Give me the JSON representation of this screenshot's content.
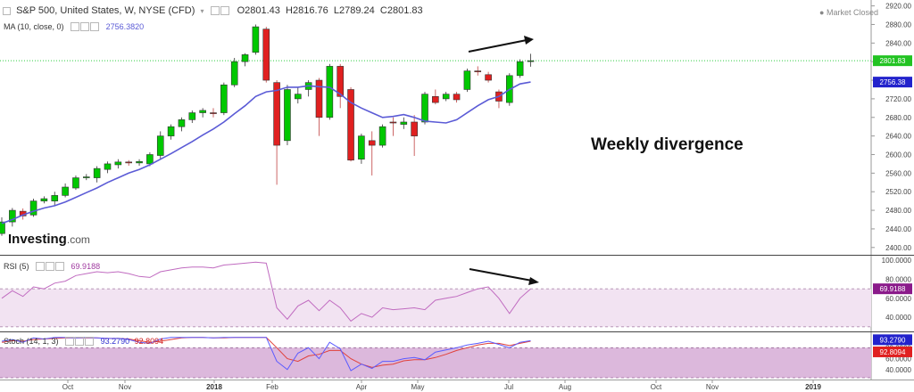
{
  "header": {
    "symbol_title": "S&P 500, United States, W, NYSE (CFD)",
    "open": "O2801.43",
    "high": "H2816.76",
    "low": "L2789.24",
    "close": "C2801.83",
    "ma_label": "MA (10, close, 0)",
    "ma_value": "2756.3820",
    "market_status": "Market Closed",
    "rsi_label": "RSI (5)",
    "rsi_value": "69.9188",
    "stoch_label": "Stoch (14, 1, 3)",
    "stoch_k_value": "93.2790",
    "stoch_d_value": "92.8094",
    "annotation": "Weekly divergence",
    "brand": "Investing",
    "brand_suffix": ".com"
  },
  "price_badges": {
    "close": "2801.83",
    "ma": "2756.38",
    "rsi": "69.9188",
    "stoch_k": "93.2790",
    "stoch_d": "92.8094"
  },
  "colors": {
    "up": "#00c800",
    "down": "#e02020",
    "ma": "#5b5bd6",
    "rsi": "#c06bc0",
    "stoch_k": "#5b5bff",
    "stoch_d": "#e0403a",
    "band_rsi": "#f2e3f2",
    "band_stoch": "#dcb8dc",
    "close_line": "#2ecc40"
  },
  "chart_data": {
    "type": "candlestick",
    "x_axis_ticks": [
      "Oct",
      "Nov",
      "2018",
      "Feb",
      "Apr",
      "May",
      "Jul",
      "Aug",
      "Oct",
      "Nov",
      "2019"
    ],
    "price_axis": {
      "ylim": [
        2390,
        2925
      ],
      "ticks": [
        2400,
        2440,
        2480,
        2520,
        2560,
        2600,
        2640,
        2680,
        2720,
        2760,
        2800,
        2840,
        2880,
        2920
      ]
    },
    "rsi_axis": {
      "ylim": [
        27,
        103
      ],
      "ticks": [
        "100.0000",
        "80.0000",
        "60.0000",
        "40.0000"
      ],
      "band": [
        30,
        70
      ]
    },
    "stoch_axis": {
      "ylim": [
        25,
        105
      ],
      "ticks": [
        "80.0000",
        "60.0000",
        "40.0000"
      ],
      "band": [
        20,
        80
      ]
    },
    "candles": [
      {
        "o": 2430,
        "c": 2455,
        "h": 2465,
        "l": 2425
      },
      {
        "o": 2455,
        "c": 2480,
        "h": 2485,
        "l": 2445
      },
      {
        "o": 2478,
        "c": 2468,
        "h": 2484,
        "l": 2460
      },
      {
        "o": 2470,
        "c": 2500,
        "h": 2505,
        "l": 2466
      },
      {
        "o": 2500,
        "c": 2505,
        "h": 2510,
        "l": 2495
      },
      {
        "o": 2500,
        "c": 2512,
        "h": 2520,
        "l": 2490
      },
      {
        "o": 2512,
        "c": 2530,
        "h": 2538,
        "l": 2508
      },
      {
        "o": 2528,
        "c": 2550,
        "h": 2555,
        "l": 2524
      },
      {
        "o": 2550,
        "c": 2552,
        "h": 2558,
        "l": 2545
      },
      {
        "o": 2550,
        "c": 2570,
        "h": 2575,
        "l": 2540
      },
      {
        "o": 2568,
        "c": 2580,
        "h": 2585,
        "l": 2560
      },
      {
        "o": 2578,
        "c": 2584,
        "h": 2590,
        "l": 2570
      },
      {
        "o": 2584,
        "c": 2582,
        "h": 2588,
        "l": 2576
      },
      {
        "o": 2582,
        "c": 2585,
        "h": 2590,
        "l": 2576
      },
      {
        "o": 2580,
        "c": 2600,
        "h": 2605,
        "l": 2575
      },
      {
        "o": 2598,
        "c": 2640,
        "h": 2650,
        "l": 2590
      },
      {
        "o": 2640,
        "c": 2660,
        "h": 2665,
        "l": 2632
      },
      {
        "o": 2660,
        "c": 2675,
        "h": 2680,
        "l": 2650
      },
      {
        "o": 2675,
        "c": 2690,
        "h": 2695,
        "l": 2668
      },
      {
        "o": 2690,
        "c": 2695,
        "h": 2700,
        "l": 2680
      },
      {
        "o": 2690,
        "c": 2688,
        "h": 2700,
        "l": 2680
      },
      {
        "o": 2690,
        "c": 2750,
        "h": 2755,
        "l": 2685
      },
      {
        "o": 2750,
        "c": 2800,
        "h": 2808,
        "l": 2745
      },
      {
        "o": 2800,
        "c": 2815,
        "h": 2818,
        "l": 2790
      },
      {
        "o": 2820,
        "c": 2875,
        "h": 2880,
        "l": 2815
      },
      {
        "o": 2870,
        "c": 2760,
        "h": 2875,
        "l": 2755
      },
      {
        "o": 2755,
        "c": 2620,
        "h": 2760,
        "l": 2535
      },
      {
        "o": 2630,
        "c": 2740,
        "h": 2750,
        "l": 2620
      },
      {
        "o": 2720,
        "c": 2730,
        "h": 2745,
        "l": 2710
      },
      {
        "o": 2740,
        "c": 2755,
        "h": 2760,
        "l": 2725
      },
      {
        "o": 2760,
        "c": 2680,
        "h": 2765,
        "l": 2640
      },
      {
        "o": 2680,
        "c": 2790,
        "h": 2795,
        "l": 2675
      },
      {
        "o": 2790,
        "c": 2725,
        "h": 2795,
        "l": 2700
      },
      {
        "o": 2740,
        "c": 2588,
        "h": 2745,
        "l": 2585
      },
      {
        "o": 2590,
        "c": 2640,
        "h": 2645,
        "l": 2580
      },
      {
        "o": 2630,
        "c": 2620,
        "h": 2650,
        "l": 2555
      },
      {
        "o": 2620,
        "c": 2660,
        "h": 2665,
        "l": 2615
      },
      {
        "o": 2670,
        "c": 2668,
        "h": 2680,
        "l": 2640
      },
      {
        "o": 2665,
        "c": 2670,
        "h": 2680,
        "l": 2655
      },
      {
        "o": 2670,
        "c": 2640,
        "h": 2685,
        "l": 2597
      },
      {
        "o": 2670,
        "c": 2730,
        "h": 2735,
        "l": 2665
      },
      {
        "o": 2725,
        "c": 2712,
        "h": 2740,
        "l": 2708
      },
      {
        "o": 2720,
        "c": 2730,
        "h": 2735,
        "l": 2715
      },
      {
        "o": 2730,
        "c": 2718,
        "h": 2735,
        "l": 2712
      },
      {
        "o": 2740,
        "c": 2780,
        "h": 2785,
        "l": 2735
      },
      {
        "o": 2780,
        "c": 2778,
        "h": 2790,
        "l": 2770
      },
      {
        "o": 2772,
        "c": 2760,
        "h": 2778,
        "l": 2755
      },
      {
        "o": 2735,
        "c": 2715,
        "h": 2740,
        "l": 2700
      },
      {
        "o": 2712,
        "c": 2770,
        "h": 2775,
        "l": 2705
      },
      {
        "o": 2770,
        "c": 2800,
        "h": 2805,
        "l": 2765
      },
      {
        "o": 2801,
        "c": 2802,
        "h": 2817,
        "l": 2789
      }
    ],
    "ma": [
      2452,
      2460,
      2470,
      2478,
      2485,
      2490,
      2498,
      2508,
      2518,
      2528,
      2540,
      2550,
      2560,
      2568,
      2578,
      2590,
      2602,
      2615,
      2628,
      2642,
      2655,
      2670,
      2688,
      2705,
      2725,
      2735,
      2738,
      2745,
      2745,
      2748,
      2746,
      2745,
      2730,
      2712,
      2700,
      2690,
      2680,
      2682,
      2686,
      2680,
      2672,
      2670,
      2668,
      2675,
      2690,
      2705,
      2718,
      2725,
      2740,
      2752,
      2756
    ],
    "rsi": [
      60,
      68,
      62,
      72,
      70,
      76,
      78,
      84,
      86,
      88,
      87,
      88,
      86,
      83,
      82,
      88,
      90,
      92,
      93,
      93,
      92,
      95,
      96,
      97,
      98,
      97,
      50,
      38,
      52,
      58,
      47,
      58,
      50,
      36,
      44,
      40,
      50,
      48,
      49,
      50,
      48,
      58,
      60,
      62,
      66,
      70,
      72,
      60,
      44,
      60,
      70
    ],
    "stoch_k": [
      92,
      95,
      90,
      98,
      96,
      99,
      99,
      98,
      99,
      98,
      97,
      97,
      95,
      90,
      88,
      96,
      99,
      99,
      99,
      99,
      98,
      99,
      99,
      99,
      99,
      99,
      55,
      40,
      70,
      80,
      60,
      90,
      78,
      38,
      50,
      42,
      55,
      55,
      60,
      62,
      58,
      72,
      76,
      80,
      85,
      88,
      92,
      86,
      80,
      90,
      93
    ],
    "stoch_d": [
      90,
      93,
      92,
      95,
      96,
      97,
      98,
      98,
      98,
      98,
      97,
      97,
      96,
      93,
      90,
      92,
      95,
      98,
      99,
      99,
      98,
      98,
      99,
      99,
      99,
      99,
      80,
      60,
      55,
      65,
      68,
      75,
      75,
      60,
      50,
      44,
      48,
      50,
      56,
      58,
      58,
      62,
      68,
      75,
      80,
      85,
      88,
      88,
      84,
      88,
      92
    ]
  }
}
